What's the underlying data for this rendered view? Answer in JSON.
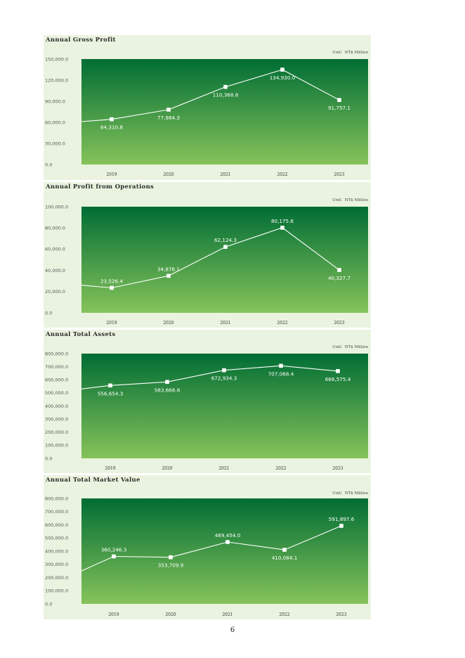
{
  "page": {
    "number": "6"
  },
  "colors": {
    "panel_bg": "#eaf3df",
    "plot_top": "#006d34",
    "plot_bottom": "#86c35a",
    "line": "#ffffff"
  },
  "chart_data": [
    {
      "type": "line",
      "title": "Annual Gross Profit",
      "unit": "Unit：NT$ Million",
      "categories": [
        "2019",
        "2020",
        "2021",
        "2022",
        "2023"
      ],
      "values": [
        64310.8,
        77984.3,
        110368.8,
        134930.0,
        91757.1
      ],
      "data_labels": [
        "64,310.8",
        "77,984.3",
        "110,368.8",
        "134,930.0",
        "91,757.1"
      ],
      "label_position": [
        "below",
        "below",
        "below",
        "below",
        "below"
      ],
      "lead_in_value": 61000,
      "ylim": [
        0,
        150000
      ],
      "yticks": [
        0,
        30000,
        60000,
        90000,
        120000,
        150000
      ],
      "ytick_labels": [
        "0.0",
        "30,000.0",
        "60,000.0",
        "90,000.0",
        "120,000.0",
        "150,000.0"
      ],
      "grid": false,
      "legend": "none"
    },
    {
      "type": "line",
      "title": "Annual Profit from Operations",
      "unit": "Unit：NT$ Million",
      "categories": [
        "2019",
        "2020",
        "2021",
        "2022",
        "2023"
      ],
      "values": [
        23526.4,
        34876.1,
        62124.3,
        80175.6,
        40327.7
      ],
      "data_labels": [
        "23,526.4",
        "34,876.1",
        "62,124.3",
        "80,175.6",
        "40,327.7"
      ],
      "label_position": [
        "above",
        "above",
        "above",
        "above",
        "below"
      ],
      "lead_in_value": 26000,
      "ylim": [
        0,
        100000
      ],
      "yticks": [
        0,
        20000,
        40000,
        60000,
        80000,
        100000
      ],
      "ytick_labels": [
        "0.0",
        "20,000.0",
        "40,000.0",
        "60,000.0",
        "80,000.0",
        "100,000.0"
      ],
      "grid": false,
      "legend": "none"
    },
    {
      "type": "line",
      "title": "Annual Total Assets",
      "unit": "Unit：NT$ Million",
      "categories": [
        "2019",
        "2020",
        "2021",
        "2022",
        "2023"
      ],
      "values": [
        556654.3,
        583666.8,
        672934.3,
        707068.4,
        666575.4
      ],
      "data_labels": [
        "556,654.3",
        "583,666.8",
        "672,934.3",
        "707,068.4",
        "666,575.4"
      ],
      "label_position": [
        "below",
        "below",
        "below",
        "below",
        "below"
      ],
      "lead_in_value": 530000,
      "ylim": [
        0,
        800000
      ],
      "yticks": [
        0,
        100000,
        200000,
        300000,
        400000,
        500000,
        600000,
        700000,
        800000
      ],
      "ytick_labels": [
        "0.0",
        "100,000.0",
        "200,000.0",
        "300,000.0",
        "400,000.0",
        "500,000.0",
        "600,000.0",
        "700,000.0",
        "800,000.0"
      ],
      "grid": false,
      "legend": "none"
    },
    {
      "type": "line",
      "title": "Annual Total Market Value",
      "unit": "Unit：NT$ Million",
      "categories": [
        "2019",
        "2020",
        "2021",
        "2022",
        "2023"
      ],
      "values": [
        360246.3,
        353709.9,
        469454.0,
        410084.1,
        591897.6
      ],
      "data_labels": [
        "360,246.3",
        "353,709.9",
        "469,454.0",
        "410,084.1",
        "591,897.6"
      ],
      "label_position": [
        "above",
        "below",
        "above",
        "below",
        "above"
      ],
      "lead_in_value": 250000,
      "ylim": [
        0,
        800000
      ],
      "yticks": [
        0,
        100000,
        200000,
        300000,
        400000,
        500000,
        600000,
        700000,
        800000
      ],
      "ytick_labels": [
        "0.0",
        "100,000.0",
        "200,000.0",
        "300,000.0",
        "400,000.0",
        "500,000.0",
        "600,000.0",
        "700,000.0",
        "800,000.0"
      ],
      "grid": false,
      "legend": "none"
    }
  ]
}
